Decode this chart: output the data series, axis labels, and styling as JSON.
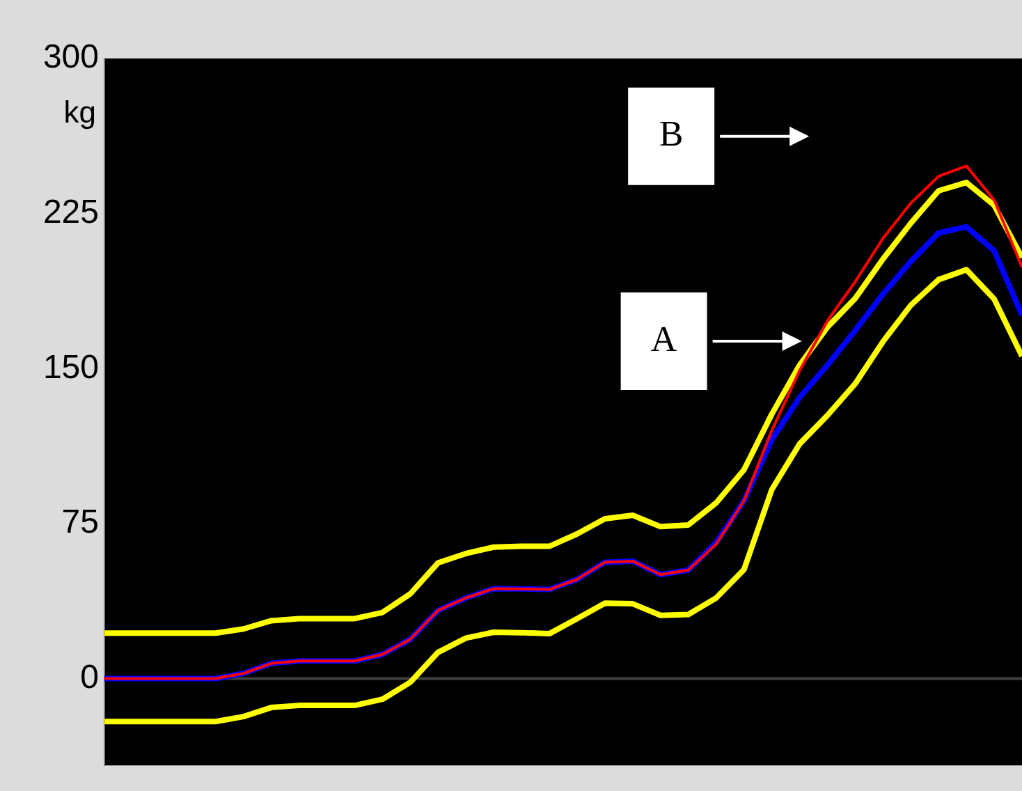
{
  "chart_data": {
    "type": "line",
    "ylabel": "kg",
    "categories": [
      null,
      null,
      null,
      null,
      null,
      null,
      null,
      null,
      null,
      null,
      null,
      null,
      null,
      null,
      null,
      null,
      null,
      null,
      null,
      null,
      null,
      null,
      null,
      null,
      null,
      null,
      null,
      null,
      null,
      null,
      null,
      null,
      null,
      null
    ],
    "series": [
      {
        "color": "#ffff00",
        "values": [
          22,
          22,
          22,
          22,
          22,
          24,
          28,
          29,
          29,
          29,
          32,
          41,
          56,
          60.5,
          63.6,
          64,
          64,
          70,
          77.3,
          79,
          73.5,
          74.3,
          85,
          101,
          127.9,
          151.6,
          170,
          183.9,
          203,
          220.3,
          236,
          240,
          229,
          203.6
        ]
      },
      {
        "color": "#ffff00",
        "values": [
          -20.8,
          -20.8,
          -20.8,
          -20.8,
          -20.8,
          -18.4,
          -14,
          -13,
          -13,
          -13,
          -10,
          -1.8,
          12.7,
          19.6,
          22.4,
          22.2,
          21.7,
          29,
          36.5,
          36.2,
          30.6,
          31,
          39,
          52.7,
          91.4,
          113.5,
          127.3,
          142.6,
          163,
          180.6,
          193,
          197.8,
          183.6,
          156
        ]
      },
      {
        "color": "#0000ff",
        "values": [
          0,
          0,
          0,
          0,
          0,
          2.5,
          7.3,
          8.5,
          8.5,
          8.5,
          11.7,
          19,
          33,
          39,
          43.5,
          43.4,
          43.1,
          48,
          56.3,
          56.8,
          50.3,
          52.5,
          65.8,
          86,
          115.5,
          136,
          151.6,
          168.4,
          186,
          201.8,
          215.6,
          218.6,
          207,
          175.7
        ]
      },
      {
        "color": "#ff0000",
        "values": [
          0,
          0,
          0,
          0,
          0,
          2.5,
          7.3,
          8.5,
          8.5,
          8.5,
          11.7,
          19,
          33,
          39,
          43.5,
          43.4,
          43.1,
          48,
          56.3,
          56.8,
          50.3,
          52.5,
          65,
          86,
          120,
          149,
          173,
          192,
          213,
          230,
          243,
          248,
          231.5,
          199
        ]
      }
    ],
    "ylim": [
      -42,
      300
    ],
    "yticks": [
      0,
      75,
      150,
      225,
      300
    ],
    "tick_labels": "y",
    "legend": false,
    "marker": "none",
    "line_style": "solid",
    "ref_lines": [
      {
        "axis": "y",
        "value": 0,
        "color": "#404040"
      }
    ],
    "annotations": [
      "A",
      "B"
    ]
  }
}
